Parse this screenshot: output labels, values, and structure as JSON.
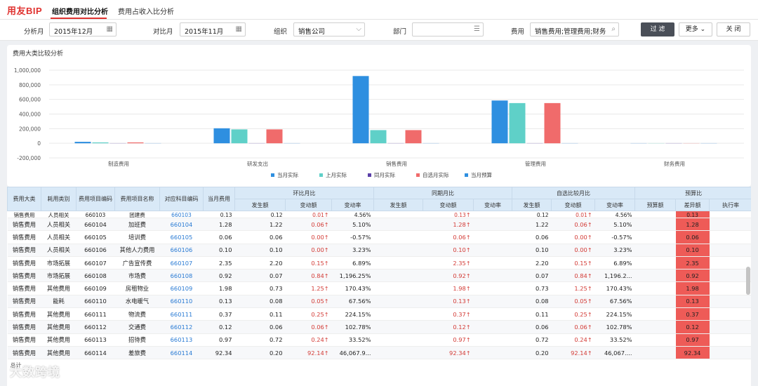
{
  "app": {
    "logo": "用友BIP"
  },
  "tabs": [
    {
      "label": "组织费用对比分析"
    },
    {
      "label": "费用占收入比分析"
    }
  ],
  "filters": {
    "period_label": "分析月",
    "period_value": "2015年12月",
    "compare_label": "对比月",
    "compare_value": "2015年11月",
    "org_label": "组织",
    "org_value": "销售公司",
    "dept_label": "部门",
    "dept_value": "",
    "fee_label": "费用",
    "fee_value": "销售费用;管理费用;财务"
  },
  "buttons": {
    "filter": "过 滤",
    "more": "更多",
    "close": "关 闭"
  },
  "chart_data": {
    "type": "bar",
    "title": "费用大类比较分析",
    "categories": [
      "制造费用",
      "研发支出",
      "销售费用",
      "管理费用",
      "财务费用"
    ],
    "series": [
      {
        "name": "当月实际",
        "color": "#2e8fe0",
        "values": [
          20000,
          205000,
          920000,
          585000,
          0
        ]
      },
      {
        "name": "上月实际",
        "color": "#5fd0c8",
        "values": [
          12000,
          190000,
          180000,
          550000,
          0
        ]
      },
      {
        "name": "同月实际",
        "color": "#5a3fa8",
        "values": [
          0,
          0,
          0,
          0,
          0
        ]
      },
      {
        "name": "自选月实际",
        "color": "#f06b6b",
        "values": [
          12000,
          190000,
          180000,
          550000,
          0
        ]
      },
      {
        "name": "当月预算",
        "color": "#2e8fe0",
        "values": [
          0,
          0,
          0,
          0,
          0
        ]
      }
    ],
    "ylim": [
      -200000,
      1000000
    ],
    "yticks": [
      "1,000,000",
      "800,000",
      "600,000",
      "400,000",
      "200,000",
      "0",
      "-200,000"
    ],
    "ytick_values": [
      1000000,
      800000,
      600000,
      400000,
      200000,
      0,
      -200000
    ],
    "legend_position": "bottom-center",
    "grid": true
  },
  "table": {
    "group_headers": {
      "mom": "环比月比",
      "yoy": "同期月比",
      "custom": "自选比较月比",
      "budget": "预算比"
    },
    "headers": {
      "category": "费用大类",
      "type": "耗用类别",
      "code": "费用项目编码",
      "name": "费用项目名称",
      "subject": "对应科目编码",
      "current": "当月费用",
      "amount": "发生额",
      "change": "变动额",
      "rate": "变动率",
      "budget": "预算额",
      "diff": "差异额",
      "exec": "执行率"
    },
    "rows": [
      {
        "cat": "销售费用",
        "type": "人员相关",
        "code": "660103",
        "name": "团建费",
        "subj": "660103",
        "cur": "0.13",
        "m_amt": "0.12",
        "m_chg": "0.01",
        "m_rate": "4.56%",
        "y_chg": "0.13",
        "c_amt": "0.12",
        "c_chg": "0.01",
        "c_rate": "4.56%",
        "diff": "0.13"
      },
      {
        "cat": "销售费用",
        "type": "人员相关",
        "code": "660104",
        "name": "加班费",
        "subj": "660104",
        "cur": "1.28",
        "m_amt": "1.22",
        "m_chg": "0.06",
        "m_rate": "5.10%",
        "y_chg": "1.28",
        "c_amt": "1.22",
        "c_chg": "0.06",
        "c_rate": "5.10%",
        "diff": "1.28"
      },
      {
        "cat": "销售费用",
        "type": "人员相关",
        "code": "660105",
        "name": "培训费",
        "subj": "660105",
        "cur": "0.06",
        "m_amt": "0.06",
        "m_chg": "0.00",
        "m_rate": "-0.57%",
        "y_chg": "0.06",
        "c_amt": "0.06",
        "c_chg": "0.00",
        "c_rate": "-0.57%",
        "diff": "0.06"
      },
      {
        "cat": "销售费用",
        "type": "人员相关",
        "code": "660106",
        "name": "其他人力费用",
        "subj": "660106",
        "cur": "0.10",
        "m_amt": "0.10",
        "m_chg": "0.00",
        "m_rate": "3.23%",
        "y_chg": "0.10",
        "c_amt": "0.10",
        "c_chg": "0.00",
        "c_rate": "3.23%",
        "diff": "0.10"
      },
      {
        "cat": "销售费用",
        "type": "市场拓展",
        "code": "660107",
        "name": "广告宣传费",
        "subj": "660107",
        "cur": "2.35",
        "m_amt": "2.20",
        "m_chg": "0.15",
        "m_rate": "6.89%",
        "y_chg": "2.35",
        "c_amt": "2.20",
        "c_chg": "0.15",
        "c_rate": "6.89%",
        "diff": "2.35"
      },
      {
        "cat": "销售费用",
        "type": "市场拓展",
        "code": "660108",
        "name": "市场费",
        "subj": "660108",
        "cur": "0.92",
        "m_amt": "0.07",
        "m_chg": "0.84",
        "m_rate": "1,196.25%",
        "y_chg": "0.92",
        "c_amt": "0.07",
        "c_chg": "0.84",
        "c_rate": "1,196.2...",
        "diff": "0.92"
      },
      {
        "cat": "销售费用",
        "type": "其他费用",
        "code": "660109",
        "name": "房租物业",
        "subj": "660109",
        "cur": "1.98",
        "m_amt": "0.73",
        "m_chg": "1.25",
        "m_rate": "170.43%",
        "y_chg": "1.98",
        "c_amt": "0.73",
        "c_chg": "1.25",
        "c_rate": "170.43%",
        "diff": "1.98"
      },
      {
        "cat": "销售费用",
        "type": "能耗",
        "code": "660110",
        "name": "水电暖气",
        "subj": "660110",
        "cur": "0.13",
        "m_amt": "0.08",
        "m_chg": "0.05",
        "m_rate": "67.56%",
        "y_chg": "0.13",
        "c_amt": "0.08",
        "c_chg": "0.05",
        "c_rate": "67.56%",
        "diff": "0.13"
      },
      {
        "cat": "销售费用",
        "type": "其他费用",
        "code": "660111",
        "name": "物流费",
        "subj": "660111",
        "cur": "0.37",
        "m_amt": "0.11",
        "m_chg": "0.25",
        "m_rate": "224.15%",
        "y_chg": "0.37",
        "c_amt": "0.11",
        "c_chg": "0.25",
        "c_rate": "224.15%",
        "diff": "0.37"
      },
      {
        "cat": "销售费用",
        "type": "其他费用",
        "code": "660112",
        "name": "交通费",
        "subj": "660112",
        "cur": "0.12",
        "m_amt": "0.06",
        "m_chg": "0.06",
        "m_rate": "102.78%",
        "y_chg": "0.12",
        "c_amt": "0.06",
        "c_chg": "0.06",
        "c_rate": "102.78%",
        "diff": "0.12"
      },
      {
        "cat": "销售费用",
        "type": "其他费用",
        "code": "660113",
        "name": "招待费",
        "subj": "660113",
        "cur": "0.97",
        "m_amt": "0.72",
        "m_chg": "0.24",
        "m_rate": "33.52%",
        "y_chg": "0.97",
        "c_amt": "0.72",
        "c_chg": "0.24",
        "c_rate": "33.52%",
        "diff": "0.97"
      },
      {
        "cat": "销售费用",
        "type": "其他费用",
        "code": "660114",
        "name": "差旅费",
        "subj": "660114",
        "cur": "92.34",
        "m_amt": "0.20",
        "m_chg": "92.14",
        "m_rate": "46,067.9...",
        "y_chg": "92.34",
        "c_amt": "0.20",
        "c_chg": "92.14",
        "c_rate": "46,067....",
        "diff": "92.34"
      }
    ],
    "summary_label": "总计",
    "change_arrow": "↑"
  },
  "watermark": "大数跨境"
}
